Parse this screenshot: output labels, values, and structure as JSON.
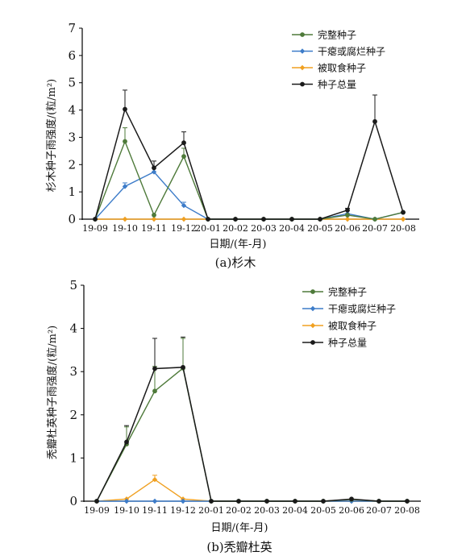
{
  "chart_data": [
    {
      "type": "line",
      "caption": "(a)杉木",
      "xlabel": "日期/(年-月)",
      "ylabel": "杉木种子雨强度/(粒/m²)",
      "ylim": [
        0,
        7
      ],
      "yticks": [
        0,
        1,
        2,
        3,
        4,
        5,
        6,
        7
      ],
      "categories": [
        "19-09",
        "19-10",
        "19-11",
        "19-12",
        "20-01",
        "20-02",
        "20-03",
        "20-04",
        "20-05",
        "20-06",
        "20-07",
        "20-08"
      ],
      "legend_position": "top-right",
      "series": [
        {
          "name": "完整种子",
          "color": "#4e7a3a",
          "values": [
            0,
            2.85,
            0.15,
            2.3,
            0,
            0,
            0,
            0,
            0,
            0.15,
            0,
            0.25
          ]
        },
        {
          "name": "干瘪或腐烂种子",
          "color": "#3d7cc9",
          "values": [
            0,
            1.2,
            1.73,
            0.5,
            0,
            0,
            0,
            0,
            0,
            0.2,
            0,
            0.25
          ]
        },
        {
          "name": "被取食种子",
          "color": "#f0a020",
          "values": [
            0,
            0,
            0,
            0,
            0,
            0,
            0,
            0,
            0,
            0,
            0,
            0
          ]
        },
        {
          "name": "种子总量",
          "color": "#1a1a1a",
          "values": [
            0,
            4.03,
            1.88,
            2.8,
            0,
            0,
            0,
            0,
            0,
            0.33,
            3.58,
            0.25
          ]
        }
      ],
      "error_bars": [
        {
          "series": "完整种子",
          "index": 1,
          "upper": 3.35
        },
        {
          "series": "干瘪或腐烂种子",
          "index": 1,
          "upper": 1.33
        },
        {
          "series": "干瘪或腐烂种子",
          "index": 3,
          "upper": 0.62
        },
        {
          "series": "完整种子",
          "index": 3,
          "upper": 2.6
        },
        {
          "series": "种子总量",
          "index": 1,
          "upper": 4.73
        },
        {
          "series": "种子总量",
          "index": 2,
          "upper": 2.13
        },
        {
          "series": "种子总量",
          "index": 3,
          "upper": 3.2
        },
        {
          "series": "种子总量",
          "index": 9,
          "upper": 0.4
        },
        {
          "series": "种子总量",
          "index": 10,
          "upper": 4.55
        }
      ]
    },
    {
      "type": "line",
      "caption": "(b)秃瓣杜英",
      "xlabel": "日期/(年-月)",
      "ylabel": "秃瓣杜英种子雨强度/(粒/m²)",
      "ylim": [
        0,
        5
      ],
      "yticks": [
        0,
        1,
        2,
        3,
        4,
        5
      ],
      "categories": [
        "19-09",
        "19-10",
        "19-11",
        "19-12",
        "20-01",
        "20-02",
        "20-03",
        "20-04",
        "20-05",
        "20-06",
        "20-07",
        "20-08"
      ],
      "legend_position": "top-right",
      "series": [
        {
          "name": "完整种子",
          "color": "#4e7a3a",
          "values": [
            0,
            1.32,
            2.55,
            3.08,
            0,
            0,
            0,
            0,
            0,
            0.04,
            0,
            0
          ]
        },
        {
          "name": "干瘪或腐烂种子",
          "color": "#3d7cc9",
          "values": [
            0,
            0,
            0,
            0,
            0,
            0,
            0,
            0,
            0,
            0,
            0,
            0
          ]
        },
        {
          "name": "被取食种子",
          "color": "#f0a020",
          "values": [
            0,
            0.05,
            0.5,
            0.05,
            0,
            0,
            0,
            0,
            0,
            0,
            0,
            0
          ]
        },
        {
          "name": "种子总量",
          "color": "#1a1a1a",
          "values": [
            0,
            1.37,
            3.07,
            3.1,
            0,
            0,
            0,
            0,
            0,
            0.05,
            0,
            0
          ]
        }
      ],
      "error_bars": [
        {
          "series": "种子总量",
          "index": 1,
          "upper": 1.75
        },
        {
          "series": "完整种子",
          "index": 1,
          "upper": 1.72
        },
        {
          "series": "被取食种子",
          "index": 2,
          "upper": 0.6
        },
        {
          "series": "种子总量",
          "index": 2,
          "upper": 3.77
        },
        {
          "series": "完整种子",
          "index": 2,
          "upper": 3.12
        },
        {
          "series": "种子总量",
          "index": 3,
          "upper": 3.8
        },
        {
          "series": "完整种子",
          "index": 3,
          "upper": 3.77
        }
      ]
    }
  ]
}
